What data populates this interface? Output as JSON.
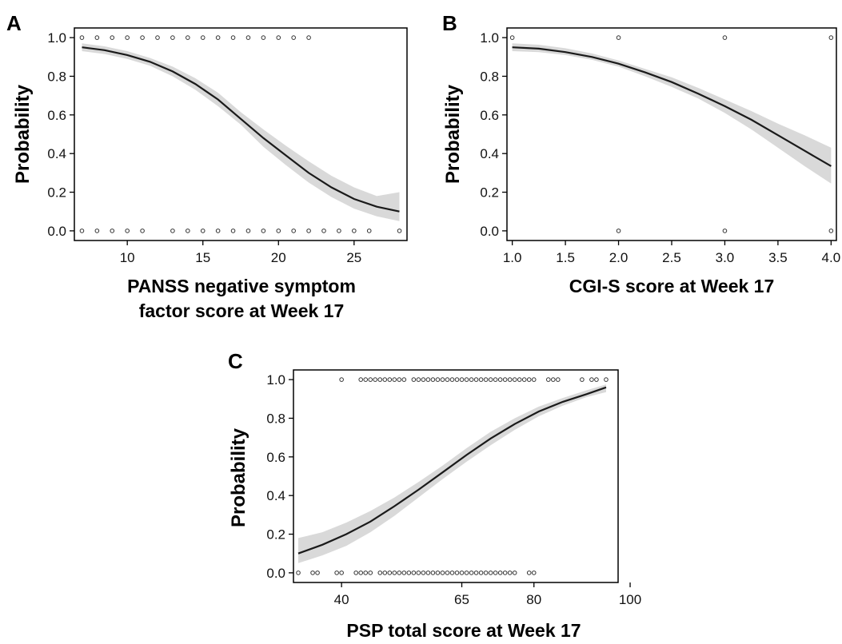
{
  "colors": {
    "curve": "#1a1a1a",
    "band": "#d9d9d9",
    "axis": "#000000",
    "points": "#333333"
  },
  "chart_data": [
    {
      "panel_label": "A",
      "type": "line",
      "xlabel": [
        "PANSS negative symptom",
        "factor score at Week 17"
      ],
      "ylabel": "Probability",
      "xlim": [
        6.5,
        28.5
      ],
      "ylim": [
        -0.05,
        1.05
      ],
      "xticks": [
        10,
        15,
        20,
        25
      ],
      "xtick_labels": [
        "10",
        "15",
        "20",
        "25"
      ],
      "yticks": [
        0.0,
        0.2,
        0.4,
        0.6,
        0.8,
        1.0
      ],
      "ytick_labels": [
        "0.0",
        "0.2",
        "0.4",
        "0.6",
        "0.8",
        "1.0"
      ],
      "grid": false,
      "fit": {
        "x": [
          7,
          8.5,
          10,
          11.5,
          13,
          14.5,
          16,
          17.5,
          19,
          20.5,
          22,
          23.5,
          25,
          26.5,
          28
        ],
        "y": [
          0.95,
          0.935,
          0.91,
          0.875,
          0.825,
          0.76,
          0.68,
          0.58,
          0.48,
          0.39,
          0.3,
          0.225,
          0.165,
          0.125,
          0.1
        ]
      },
      "ci_lower": [
        0.93,
        0.915,
        0.89,
        0.855,
        0.8,
        0.73,
        0.645,
        0.55,
        0.435,
        0.34,
        0.25,
        0.175,
        0.115,
        0.075,
        0.05
      ],
      "ci_upper": [
        0.97,
        0.955,
        0.93,
        0.895,
        0.85,
        0.79,
        0.715,
        0.615,
        0.525,
        0.44,
        0.36,
        0.285,
        0.225,
        0.18,
        0.2
      ],
      "points_y1": [
        7,
        8,
        9,
        10,
        11,
        12,
        13,
        14,
        15,
        16,
        17,
        18,
        19,
        20,
        21,
        22
      ],
      "points_y0": [
        7,
        8,
        9,
        10,
        11,
        13,
        14,
        15,
        16,
        17,
        18,
        19,
        20,
        21,
        22,
        23,
        24,
        25,
        26,
        28
      ]
    },
    {
      "panel_label": "B",
      "type": "line",
      "xlabel": [
        "CGI-S score at Week 17"
      ],
      "ylabel": "Probability",
      "xlim": [
        0.95,
        4.05
      ],
      "ylim": [
        -0.05,
        1.05
      ],
      "xticks": [
        1.0,
        1.5,
        2.0,
        2.5,
        3.0,
        3.5,
        4.0
      ],
      "xtick_labels": [
        "1.0",
        "1.5",
        "2.0",
        "2.5",
        "3.0",
        "3.5",
        "4.0"
      ],
      "yticks": [
        0.0,
        0.2,
        0.4,
        0.6,
        0.8,
        1.0
      ],
      "ytick_labels": [
        "0.0",
        "0.2",
        "0.4",
        "0.6",
        "0.8",
        "1.0"
      ],
      "grid": false,
      "fit": {
        "x": [
          1.0,
          1.25,
          1.5,
          1.75,
          2.0,
          2.25,
          2.5,
          2.75,
          3.0,
          3.25,
          3.5,
          3.75,
          4.0
        ],
        "y": [
          0.95,
          0.943,
          0.925,
          0.9,
          0.865,
          0.82,
          0.77,
          0.71,
          0.645,
          0.575,
          0.495,
          0.415,
          0.335
        ]
      },
      "ci_lower": [
        0.93,
        0.925,
        0.91,
        0.885,
        0.85,
        0.8,
        0.745,
        0.685,
        0.61,
        0.525,
        0.43,
        0.335,
        0.245
      ],
      "ci_upper": [
        0.97,
        0.963,
        0.945,
        0.918,
        0.882,
        0.838,
        0.795,
        0.74,
        0.68,
        0.62,
        0.555,
        0.495,
        0.43
      ],
      "points_y1": [
        1.0,
        2.0,
        3.0,
        4.0
      ],
      "points_y0": [
        2.0,
        3.0,
        4.0
      ]
    },
    {
      "panel_label": "C",
      "type": "line",
      "xlabel": [
        "PSP total score at Week 17"
      ],
      "ylabel": "Probability",
      "xlim": [
        30,
        97.5
      ],
      "ylim": [
        -0.05,
        1.05
      ],
      "xticks": [
        40,
        65,
        80,
        100
      ],
      "xtick_labels": [
        "40",
        "65",
        "80",
        "100"
      ],
      "yticks": [
        0.0,
        0.2,
        0.4,
        0.6,
        0.8,
        1.0
      ],
      "ytick_labels": [
        "0.0",
        "0.2",
        "0.4",
        "0.6",
        "0.8",
        "1.0"
      ],
      "grid": false,
      "fit": {
        "x": [
          31,
          36,
          41,
          46,
          51,
          56,
          61,
          66,
          71,
          76,
          81,
          86,
          91,
          95
        ],
        "y": [
          0.1,
          0.145,
          0.2,
          0.265,
          0.345,
          0.43,
          0.52,
          0.61,
          0.695,
          0.77,
          0.835,
          0.885,
          0.925,
          0.96
        ]
      },
      "ci_lower": [
        0.05,
        0.09,
        0.14,
        0.21,
        0.295,
        0.39,
        0.485,
        0.575,
        0.66,
        0.74,
        0.81,
        0.865,
        0.91,
        0.935
      ],
      "ci_upper": [
        0.18,
        0.21,
        0.26,
        0.32,
        0.39,
        0.47,
        0.555,
        0.645,
        0.73,
        0.8,
        0.86,
        0.905,
        0.945,
        0.975
      ],
      "points_y1": [
        40,
        44,
        45,
        46,
        47,
        48,
        49,
        50,
        51,
        52,
        53,
        55,
        56,
        57,
        58,
        59,
        60,
        61,
        62,
        63,
        64,
        65,
        66,
        67,
        68,
        69,
        70,
        71,
        72,
        73,
        74,
        75,
        76,
        77,
        78,
        79,
        80,
        83,
        84,
        85,
        90,
        92,
        93,
        95
      ],
      "points_y0": [
        31,
        34,
        35,
        39,
        40,
        43,
        44,
        45,
        46,
        48,
        49,
        50,
        51,
        52,
        53,
        54,
        55,
        56,
        57,
        58,
        59,
        60,
        61,
        62,
        63,
        64,
        65,
        66,
        67,
        68,
        69,
        70,
        71,
        72,
        73,
        74,
        75,
        76,
        79,
        80
      ]
    }
  ]
}
